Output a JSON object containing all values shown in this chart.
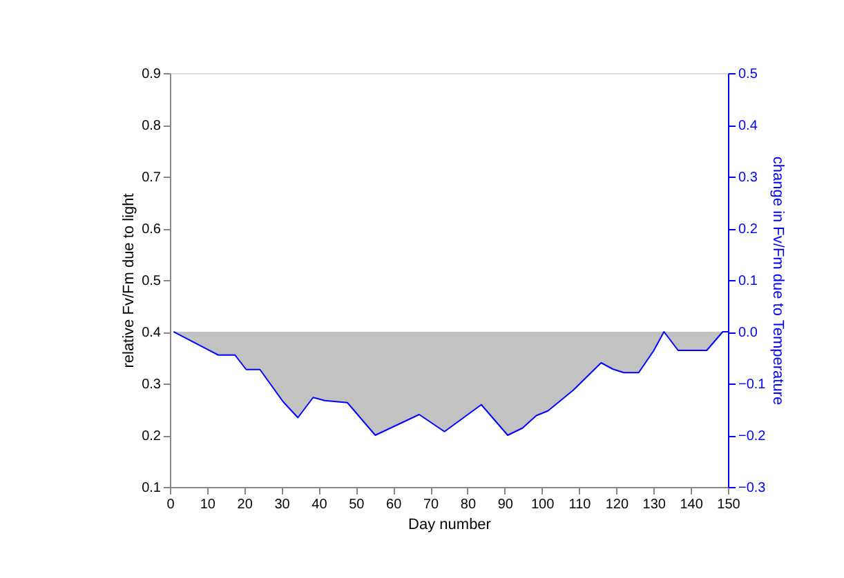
{
  "chart_data": {
    "type": "area",
    "xlabel": "Day number",
    "ylabel": "relative Fv/Fm due to light",
    "y2label": "change in Fv/Fm due to Temperature",
    "xlim": [
      0,
      150
    ],
    "xticks": [
      0,
      10,
      20,
      30,
      40,
      50,
      60,
      70,
      80,
      90,
      100,
      110,
      120,
      130,
      140,
      150
    ],
    "ylim": [
      0.1,
      0.9
    ],
    "yticks": [
      0.1,
      0.2,
      0.3,
      0.4,
      0.5,
      0.6,
      0.7,
      0.8,
      0.9
    ],
    "y2lim": [
      -0.3,
      0.5
    ],
    "y2ticks": [
      -0.3,
      -0.2,
      -0.1,
      {
        "value": 0,
        "label": "0.0"
      },
      0.1,
      0.2,
      0.3,
      0.4,
      0.5
    ],
    "grid": false,
    "series": [
      {
        "axis": "y2",
        "color": "#0000ff",
        "x": [
          1,
          13,
          17.5,
          20.5,
          24.2,
          30.4,
          34.4,
          38.5,
          41.6,
          47.7,
          55.2,
          67,
          73.8,
          83.7,
          90.8,
          94.8,
          98.5,
          101.6,
          108.4,
          115.9,
          119,
          122,
          126,
          130,
          132.8,
          136.6,
          144.3,
          148.6,
          150
        ],
        "values": [
          0.0,
          -0.045,
          -0.045,
          -0.073,
          -0.073,
          -0.135,
          -0.166,
          -0.127,
          -0.133,
          -0.137,
          -0.2,
          -0.16,
          -0.193,
          -0.141,
          -0.2,
          -0.186,
          -0.162,
          -0.153,
          -0.113,
          -0.06,
          -0.072,
          -0.079,
          -0.079,
          -0.037,
          0.0,
          -0.036,
          -0.036,
          0.0,
          0.0
        ]
      }
    ]
  }
}
